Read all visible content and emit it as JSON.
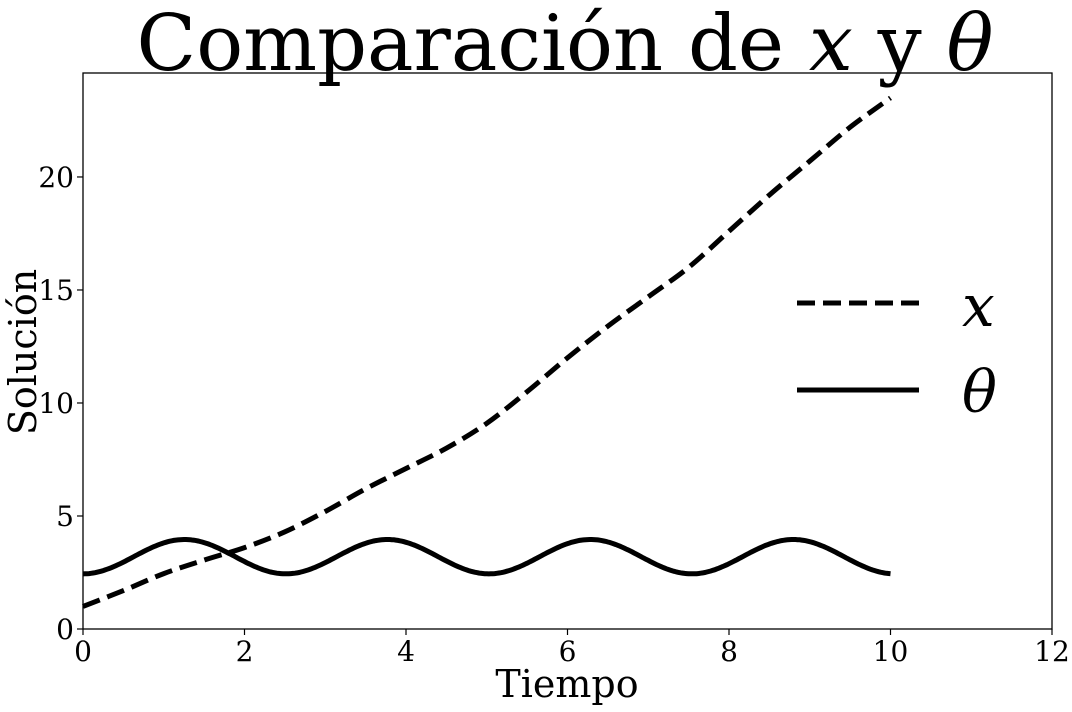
{
  "chart_data": {
    "type": "line",
    "title_prefix": "Comparación de ",
    "title_var_x": "x",
    "title_conj": " y ",
    "title_var_theta": "θ",
    "xlabel": "Tiempo",
    "ylabel": "Solución",
    "xlim": [
      0,
      12
    ],
    "ylim": [
      0,
      24.6
    ],
    "xticks": [
      0,
      2,
      4,
      6,
      8,
      10,
      12
    ],
    "yticks": [
      0,
      5,
      10,
      15,
      20
    ],
    "grid": false,
    "legend_position": "center-right",
    "series": [
      {
        "name": "x",
        "style": "dashed",
        "color": "#000000",
        "x": [
          0,
          0.5,
          1,
          1.5,
          2,
          2.5,
          3,
          3.5,
          4,
          4.5,
          5,
          5.5,
          6,
          6.5,
          7,
          7.5,
          8,
          8.5,
          9,
          9.5,
          10
        ],
        "y": [
          1.0,
          1.7,
          2.45,
          3.05,
          3.6,
          4.3,
          5.2,
          6.2,
          7.1,
          8.0,
          9.1,
          10.5,
          12.0,
          13.4,
          14.7,
          16.0,
          17.6,
          19.2,
          20.7,
          22.2,
          23.5
        ]
      },
      {
        "name": "θ",
        "style": "solid",
        "color": "#000000",
        "function": "3.2 - 0.76*cos(2.5*t)",
        "t_range": [
          0,
          10
        ]
      }
    ]
  }
}
